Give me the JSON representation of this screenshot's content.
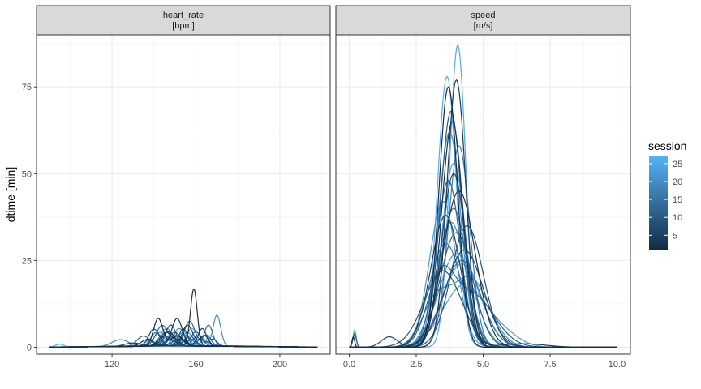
{
  "chart_data": {
    "type": "line",
    "ylabel": "dtime [min]",
    "ylim": [
      -2,
      90
    ],
    "yticks": [
      0,
      25,
      50,
      75
    ],
    "grid": true,
    "legend": {
      "title": "session",
      "placement": "right",
      "range": [
        1,
        27
      ],
      "ticks": [
        5,
        10,
        15,
        20,
        25
      ],
      "color_low": "#132B43",
      "color_high": "#56B1F7"
    },
    "panels": [
      {
        "name": "heart_rate",
        "unit": "[bpm]",
        "xlim": [
          84,
          224
        ],
        "xticks": [
          120,
          160,
          200
        ],
        "sessions": [
          {
            "session": 1,
            "baseline": 0.3,
            "peaks": [
              [
                142,
                8,
                2.2
              ],
              [
                151,
                3,
                3
              ]
            ]
          },
          {
            "session": 2,
            "baseline": 0.4,
            "peaks": [
              [
                159,
                16.5,
                1.6
              ],
              [
                147,
                4,
                3
              ]
            ]
          },
          {
            "session": 3,
            "baseline": 0.3,
            "peaks": [
              [
                151,
                8,
                2.5
              ],
              [
                137,
                2,
                3
              ]
            ]
          },
          {
            "session": 4,
            "baseline": 0.4,
            "peaks": [
              [
                156,
                6,
                2.5
              ],
              [
                164,
                3,
                2
              ]
            ]
          },
          {
            "session": 5,
            "baseline": 0.3,
            "peaks": [
              [
                146,
                4,
                3
              ],
              [
                130,
                1,
                4
              ]
            ]
          },
          {
            "session": 6,
            "baseline": 0.4,
            "peaks": [
              [
                163,
                5,
                2
              ],
              [
                152,
                2,
                3
              ]
            ]
          },
          {
            "session": 7,
            "baseline": 0.3,
            "peaks": [
              [
                140,
                5,
                2.5
              ],
              [
                157,
                3,
                2.5
              ]
            ]
          },
          {
            "session": 8,
            "baseline": 0.4,
            "peaks": [
              [
                148,
                6,
                2.5
              ]
            ]
          },
          {
            "session": 9,
            "baseline": 0.3,
            "peaks": [
              [
                154,
                5,
                2
              ],
              [
                145,
                3,
                3
              ]
            ]
          },
          {
            "session": 10,
            "baseline": 0.4,
            "peaks": [
              [
                160,
                4,
                2.5
              ],
              [
                168,
                2,
                2
              ]
            ]
          },
          {
            "session": 11,
            "baseline": 0.3,
            "peaks": [
              [
                135,
                3,
                3
              ],
              [
                150,
                4,
                3
              ]
            ]
          },
          {
            "session": 12,
            "baseline": 0.5,
            "peaks": [
              [
                157,
                7,
                2.5
              ],
              [
                165,
                3,
                2
              ]
            ]
          },
          {
            "session": 13,
            "baseline": 0.3,
            "peaks": [
              [
                144,
                6,
                3
              ]
            ]
          },
          {
            "session": 14,
            "baseline": 0.4,
            "peaks": [
              [
                166,
                6,
                2
              ],
              [
                153,
                2,
                2.5
              ]
            ]
          },
          {
            "session": 15,
            "baseline": 0.3,
            "peaks": [
              [
                149,
                3,
                3
              ],
              [
                158,
                2,
                2.5
              ]
            ]
          },
          {
            "session": 16,
            "baseline": 0.3,
            "peaks": [
              [
                141,
                4,
                2.5
              ],
              [
                162,
                2,
                2
              ]
            ]
          },
          {
            "session": 17,
            "baseline": 0.4,
            "peaks": [
              [
                155,
                3,
                3
              ]
            ]
          },
          {
            "session": 18,
            "baseline": 0.3,
            "peaks": [
              [
                124,
                2,
                4
              ],
              [
                147,
                3,
                3
              ]
            ]
          },
          {
            "session": 19,
            "baseline": 0.4,
            "peaks": [
              [
                152,
                5,
                2.5
              ]
            ]
          },
          {
            "session": 20,
            "baseline": 0.3,
            "peaks": [
              [
                170,
                9,
                1.8
              ],
              [
                161,
                3,
                2.5
              ]
            ]
          },
          {
            "session": 21,
            "baseline": 0.4,
            "peaks": [
              [
                146,
                5,
                3
              ]
            ]
          },
          {
            "session": 22,
            "baseline": 0.3,
            "peaks": [
              [
                156,
                4,
                2.5
              ],
              [
                139,
                2,
                3
              ]
            ]
          },
          {
            "session": 23,
            "baseline": 0.5,
            "peaks": [
              [
                150,
                3,
                3
              ],
              [
                163,
                2,
                2
              ]
            ]
          },
          {
            "session": 24,
            "baseline": 0.3,
            "peaks": [
              [
                143,
                4,
                3
              ]
            ]
          },
          {
            "session": 25,
            "baseline": 0.4,
            "peaks": [
              [
                158,
                5,
                2.5
              ],
              [
                167,
                3,
                2
              ]
            ]
          },
          {
            "session": 26,
            "baseline": 0.3,
            "peaks": [
              [
                148,
                3,
                3
              ],
              [
                95,
                0.8,
                2
              ]
            ]
          },
          {
            "session": 27,
            "baseline": 0.4,
            "peaks": [
              [
                154,
                4,
                2.5
              ]
            ]
          }
        ]
      },
      {
        "name": "speed",
        "unit": "[m/s]",
        "xlim": [
          -0.5,
          10.5
        ],
        "xticks": [
          0.0,
          2.5,
          5.0,
          7.5,
          10.0
        ],
        "sessions": [
          {
            "session": 1,
            "baseline": 0,
            "peaks": [
              [
                3.7,
                75,
                0.35
              ],
              [
                0.15,
                3,
                0.05
              ]
            ]
          },
          {
            "session": 2,
            "baseline": 0,
            "peaks": [
              [
                4.1,
                45,
                0.6
              ]
            ]
          },
          {
            "session": 3,
            "baseline": 0,
            "peaks": [
              [
                3.85,
                65,
                0.4
              ]
            ]
          },
          {
            "session": 4,
            "baseline": 0,
            "peaks": [
              [
                4.0,
                77,
                0.35
              ]
            ]
          },
          {
            "session": 5,
            "baseline": 0,
            "peaks": [
              [
                3.6,
                38,
                0.55
              ],
              [
                6.5,
                1,
                0.8
              ]
            ]
          },
          {
            "session": 6,
            "baseline": 0,
            "peaks": [
              [
                4.3,
                28,
                0.7
              ],
              [
                1.5,
                3,
                0.3
              ]
            ]
          },
          {
            "session": 7,
            "baseline": 0,
            "peaks": [
              [
                3.9,
                50,
                0.45
              ]
            ]
          },
          {
            "session": 8,
            "baseline": 0,
            "peaks": [
              [
                4.4,
                35,
                0.6
              ]
            ]
          },
          {
            "session": 9,
            "baseline": 0,
            "peaks": [
              [
                3.5,
                22,
                0.7
              ],
              [
                0.2,
                4,
                0.06
              ]
            ]
          },
          {
            "session": 10,
            "baseline": 0,
            "peaks": [
              [
                3.8,
                68,
                0.4
              ]
            ]
          },
          {
            "session": 11,
            "baseline": 0,
            "peaks": [
              [
                4.6,
                15,
                0.8
              ],
              [
                3.4,
                18,
                0.5
              ]
            ]
          },
          {
            "session": 12,
            "baseline": 0,
            "peaks": [
              [
                4.0,
                33,
                0.6
              ]
            ]
          },
          {
            "session": 13,
            "baseline": 0,
            "peaks": [
              [
                3.7,
                48,
                0.45
              ]
            ]
          },
          {
            "session": 14,
            "baseline": 0,
            "peaks": [
              [
                4.2,
                25,
                0.7
              ]
            ]
          },
          {
            "session": 15,
            "baseline": 0,
            "peaks": [
              [
                3.9,
                40,
                0.5
              ]
            ]
          },
          {
            "session": 16,
            "baseline": 0,
            "peaks": [
              [
                3.6,
                30,
                0.6
              ]
            ]
          },
          {
            "session": 17,
            "baseline": 0,
            "peaks": [
              [
                4.1,
                58,
                0.4
              ]
            ]
          },
          {
            "session": 18,
            "baseline": 0,
            "peaks": [
              [
                3.8,
                36,
                0.55
              ]
            ]
          },
          {
            "session": 19,
            "baseline": 0,
            "peaks": [
              [
                4.5,
                20,
                0.7
              ],
              [
                3.2,
                12,
                0.5
              ]
            ]
          },
          {
            "session": 20,
            "baseline": 0,
            "peaks": [
              [
                3.75,
                62,
                0.42
              ]
            ]
          },
          {
            "session": 21,
            "baseline": 0,
            "peaks": [
              [
                4.0,
                27,
                0.65
              ]
            ]
          },
          {
            "session": 22,
            "baseline": 0,
            "peaks": [
              [
                3.5,
                42,
                0.5
              ]
            ]
          },
          {
            "session": 23,
            "baseline": 0,
            "peaks": [
              [
                4.3,
                18,
                0.8
              ],
              [
                5.8,
                3,
                0.6
              ]
            ]
          },
          {
            "session": 24,
            "baseline": 0,
            "peaks": [
              [
                3.9,
                53,
                0.45
              ]
            ]
          },
          {
            "session": 25,
            "baseline": 0,
            "peaks": [
              [
                4.05,
                87,
                0.3
              ]
            ]
          },
          {
            "session": 26,
            "baseline": 0,
            "peaks": [
              [
                3.65,
                78,
                0.35
              ],
              [
                0.2,
                5,
                0.06
              ]
            ]
          },
          {
            "session": 27,
            "baseline": 0,
            "peaks": [
              [
                4.2,
                24,
                0.7
              ]
            ]
          }
        ]
      }
    ]
  }
}
